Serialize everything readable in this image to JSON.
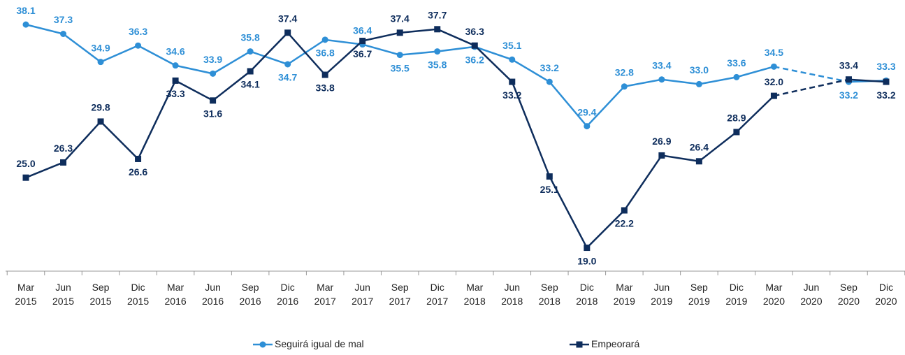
{
  "chart_data": {
    "type": "line",
    "categories": [
      "Mar 2015",
      "Jun 2015",
      "Sep 2015",
      "Dic 2015",
      "Mar 2016",
      "Jun 2016",
      "Sep 2016",
      "Dic 2016",
      "Mar 2017",
      "Jun 2017",
      "Sep 2017",
      "Dic 2017",
      "Mar 2018",
      "Jun 2018",
      "Sep 2018",
      "Dic 2018",
      "Mar 2019",
      "Jun 2019",
      "Sep 2019",
      "Dic 2019",
      "Mar 2020",
      "Jun 2020",
      "Sep 2020",
      "Dic 2020"
    ],
    "ylim": [
      17,
      40.2
    ],
    "series": [
      {
        "name": "Seguirá igual de mal",
        "color": "#2e8fd6",
        "values": [
          38.1,
          37.3,
          34.9,
          36.3,
          34.6,
          33.9,
          35.8,
          34.7,
          36.8,
          36.4,
          35.5,
          35.8,
          36.2,
          35.1,
          33.2,
          29.4,
          32.8,
          33.4,
          33.0,
          33.6,
          34.5,
          null,
          33.2,
          33.3
        ],
        "value_labels": [
          "38.1",
          "37.3",
          "34.9",
          "36.3",
          "34.6",
          "33.9",
          "35.8",
          "34.7",
          "36.8",
          "36.4",
          "35.5",
          "35.8",
          "36.2",
          "35.1",
          "33.2",
          "29.4",
          "32.8",
          "33.4",
          "33.0",
          "33.6",
          "34.5",
          null,
          "33.2",
          "33.3"
        ]
      },
      {
        "name": "Empeorará",
        "color": "#0e2d5c",
        "values": [
          25.0,
          26.3,
          29.8,
          26.6,
          33.3,
          31.6,
          34.1,
          37.4,
          33.8,
          36.7,
          37.4,
          37.7,
          36.3,
          33.2,
          25.1,
          19.0,
          22.2,
          26.9,
          26.4,
          28.9,
          32.0,
          null,
          33.4,
          33.2
        ],
        "value_labels": [
          "25.0",
          "26.3",
          "29.8",
          "26.6",
          "33.3",
          "31.6",
          "34.1",
          "37.4",
          "33.8",
          "36.7",
          "37.4",
          "37.7",
          "36.3",
          "33.2",
          "25.1",
          "19.0",
          "22.2",
          "26.9",
          "26.4",
          "28.9",
          "32.0",
          null,
          "33.4",
          "33.2"
        ]
      }
    ]
  }
}
